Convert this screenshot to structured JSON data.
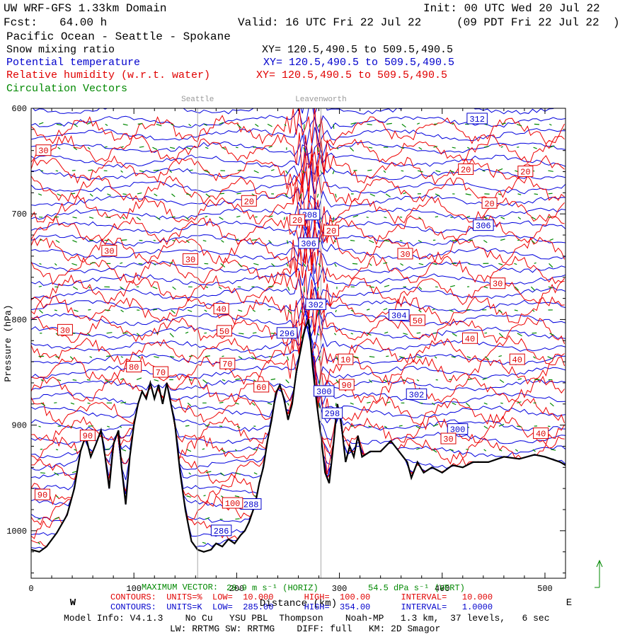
{
  "header": {
    "title": "UW WRF-GFS 1.33km Domain",
    "init": "Init: 00 UTC Wed 20 Jul 22",
    "fcst_label": "Fcst:",
    "fcst_value": "64.00 h",
    "valid": "Valid: 16 UTC Fri 22 Jul 22",
    "local": "(09 PDT Fri 22 Jul 22  )",
    "region": "Pacific Ocean - Seattle - Spokane"
  },
  "fields": [
    {
      "name": "Snow mixing ratio",
      "xy": "XY= 120.5,490.5 to 509.5,490.5",
      "color": "#000000"
    },
    {
      "name": "Potential temperature",
      "xy": "XY= 120.5,490.5 to 509.5,490.5",
      "color": "#0000cc"
    },
    {
      "name": "Relative humidity (w.r.t. water)",
      "xy": "XY= 120.5,490.5 to 509.5,490.5",
      "color": "#e00000"
    },
    {
      "name": "Circulation Vectors",
      "xy": "",
      "color": "#008800"
    }
  ],
  "chart_data": {
    "type": "cross-section",
    "x_range_km": [
      0,
      520
    ],
    "x_ticks": [
      0,
      100,
      200,
      300,
      400,
      500
    ],
    "y_range_hpa": [
      600,
      1045
    ],
    "y_ticks": [
      600,
      700,
      800,
      900,
      1000
    ],
    "xlabel": "Distance (km)",
    "ylabel": "Pressure (hPa)",
    "west_label": "W",
    "east_label": "E",
    "reference_lines": [
      {
        "label": "Seattle",
        "x_km": 162
      },
      {
        "label": "Leavenworth",
        "x_km": 282
      }
    ],
    "terrain_pressure_hpa": [
      [
        0,
        1018
      ],
      [
        8,
        1020
      ],
      [
        15,
        1015
      ],
      [
        25,
        1002
      ],
      [
        35,
        985
      ],
      [
        42,
        960
      ],
      [
        48,
        925
      ],
      [
        53,
        910
      ],
      [
        58,
        930
      ],
      [
        63,
        918
      ],
      [
        68,
        905
      ],
      [
        72,
        930
      ],
      [
        76,
        960
      ],
      [
        80,
        918
      ],
      [
        85,
        905
      ],
      [
        88,
        940
      ],
      [
        92,
        975
      ],
      [
        96,
        930
      ],
      [
        100,
        900
      ],
      [
        104,
        880
      ],
      [
        108,
        868
      ],
      [
        112,
        875
      ],
      [
        116,
        860
      ],
      [
        120,
        875
      ],
      [
        124,
        862
      ],
      [
        128,
        880
      ],
      [
        132,
        860
      ],
      [
        136,
        880
      ],
      [
        140,
        900
      ],
      [
        145,
        945
      ],
      [
        150,
        980
      ],
      [
        156,
        1010
      ],
      [
        162,
        1018
      ],
      [
        168,
        1020
      ],
      [
        175,
        1018
      ],
      [
        180,
        1012
      ],
      [
        186,
        1015
      ],
      [
        192,
        1008
      ],
      [
        198,
        1012
      ],
      [
        204,
        1004
      ],
      [
        208,
        1000
      ],
      [
        212,
        992
      ],
      [
        218,
        975
      ],
      [
        222,
        955
      ],
      [
        226,
        940
      ],
      [
        230,
        915
      ],
      [
        234,
        895
      ],
      [
        238,
        870
      ],
      [
        242,
        862
      ],
      [
        246,
        875
      ],
      [
        250,
        895
      ],
      [
        254,
        880
      ],
      [
        258,
        850
      ],
      [
        262,
        830
      ],
      [
        266,
        810
      ],
      [
        270,
        800
      ],
      [
        274,
        845
      ],
      [
        278,
        880
      ],
      [
        282,
        910
      ],
      [
        286,
        945
      ],
      [
        290,
        955
      ],
      [
        294,
        920
      ],
      [
        298,
        880
      ],
      [
        302,
        900
      ],
      [
        306,
        935
      ],
      [
        310,
        920
      ],
      [
        314,
        930
      ],
      [
        318,
        910
      ],
      [
        322,
        930
      ],
      [
        330,
        925
      ],
      [
        340,
        925
      ],
      [
        350,
        915
      ],
      [
        358,
        925
      ],
      [
        366,
        935
      ],
      [
        370,
        950
      ],
      [
        376,
        935
      ],
      [
        382,
        945
      ],
      [
        390,
        940
      ],
      [
        400,
        945
      ],
      [
        410,
        938
      ],
      [
        420,
        940
      ],
      [
        430,
        935
      ],
      [
        445,
        935
      ],
      [
        460,
        930
      ],
      [
        475,
        932
      ],
      [
        490,
        928
      ],
      [
        500,
        930
      ],
      [
        515,
        935
      ],
      [
        520,
        938
      ]
    ],
    "theta_labels_K": [
      {
        "value": "312",
        "x_km": 434,
        "p_hpa": 610
      },
      {
        "value": "308",
        "x_km": 271,
        "p_hpa": 701
      },
      {
        "value": "306",
        "x_km": 440,
        "p_hpa": 711
      },
      {
        "value": "306",
        "x_km": 270,
        "p_hpa": 728
      },
      {
        "value": "304",
        "x_km": 358,
        "p_hpa": 796
      },
      {
        "value": "302",
        "x_km": 277,
        "p_hpa": 786
      },
      {
        "value": "302",
        "x_km": 375,
        "p_hpa": 871
      },
      {
        "value": "300",
        "x_km": 415,
        "p_hpa": 904
      },
      {
        "value": "300",
        "x_km": 285,
        "p_hpa": 868
      },
      {
        "value": "298",
        "x_km": 293,
        "p_hpa": 889
      },
      {
        "value": "296",
        "x_km": 249,
        "p_hpa": 813
      },
      {
        "value": "288",
        "x_km": 214,
        "p_hpa": 975
      },
      {
        "value": "286",
        "x_km": 185,
        "p_hpa": 1000
      }
    ],
    "rh_labels_pct": [
      {
        "value": "30",
        "x_km": 12,
        "p_hpa": 640
      },
      {
        "value": "20",
        "x_km": 212,
        "p_hpa": 688
      },
      {
        "value": "20",
        "x_km": 259,
        "p_hpa": 706
      },
      {
        "value": "20",
        "x_km": 292,
        "p_hpa": 716
      },
      {
        "value": "20",
        "x_km": 423,
        "p_hpa": 658
      },
      {
        "value": "20",
        "x_km": 481,
        "p_hpa": 660
      },
      {
        "value": "20",
        "x_km": 446,
        "p_hpa": 690
      },
      {
        "value": "30",
        "x_km": 76,
        "p_hpa": 735
      },
      {
        "value": "30",
        "x_km": 155,
        "p_hpa": 743
      },
      {
        "value": "30",
        "x_km": 364,
        "p_hpa": 738
      },
      {
        "value": "30",
        "x_km": 454,
        "p_hpa": 766
      },
      {
        "value": "30",
        "x_km": 33,
        "p_hpa": 810
      },
      {
        "value": "30",
        "x_km": 406,
        "p_hpa": 913
      },
      {
        "value": "40",
        "x_km": 185,
        "p_hpa": 790
      },
      {
        "value": "40",
        "x_km": 427,
        "p_hpa": 818
      },
      {
        "value": "40",
        "x_km": 473,
        "p_hpa": 838
      },
      {
        "value": "40",
        "x_km": 496,
        "p_hpa": 908
      },
      {
        "value": "50",
        "x_km": 188,
        "p_hpa": 811
      },
      {
        "value": "50",
        "x_km": 376,
        "p_hpa": 801
      },
      {
        "value": "60",
        "x_km": 224,
        "p_hpa": 864
      },
      {
        "value": "70",
        "x_km": 126,
        "p_hpa": 850
      },
      {
        "value": "70",
        "x_km": 191,
        "p_hpa": 842
      },
      {
        "value": "80",
        "x_km": 100,
        "p_hpa": 845
      },
      {
        "value": "90",
        "x_km": 307,
        "p_hpa": 862
      },
      {
        "value": "10",
        "x_km": 306,
        "p_hpa": 838
      },
      {
        "value": "100",
        "x_km": 196,
        "p_hpa": 974
      },
      {
        "value": "90",
        "x_km": 11,
        "p_hpa": 966
      },
      {
        "value": "90",
        "x_km": 55,
        "p_hpa": 910
      }
    ]
  },
  "footer": {
    "max_vector_label": "MAXIMUM VECTOR:",
    "max_vector_horiz": "20.9 m s⁻¹ (HORIZ)",
    "max_vector_vert": "54.5 dPa s⁻¹ (VERT)",
    "rh_contours": "CONTOURS:  UNITS=%  LOW=  10.000      HIGH=  100.00      INTERVAL=   10.000",
    "theta_contours": "CONTOURS:  UNITS=K  LOW=  285.00      HIGH=  354.00      INTERVAL=   1.0000",
    "model_info": "Model Info: V4.1.3    No Cu   YSU PBL  Thompson    Noah-MP   1.3 km,  37 levels,   6 sec",
    "model_info2": "LW: RRTMG SW: RRTMG    DIFF: full   KM: 2D Smagor"
  }
}
